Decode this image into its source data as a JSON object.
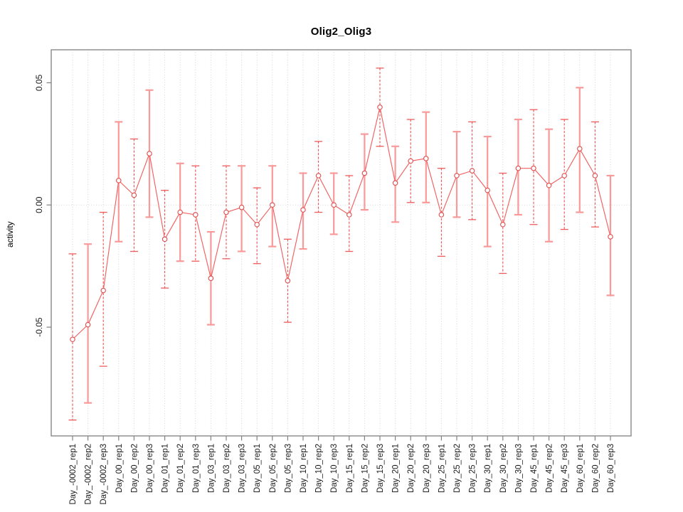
{
  "chart_data": {
    "type": "line",
    "title": "Olig2_Olig3",
    "xlabel": "",
    "ylabel": "activity",
    "legend": "none",
    "grid": "dotted vertical line at every category; dotted horizontal line at y=0",
    "ylim": [
      -0.0945,
      0.0635
    ],
    "yticks": [
      0.05,
      0.0,
      -0.05
    ],
    "ytick_labels": [
      "0.05",
      "0.00",
      "-0.05"
    ],
    "categories": [
      "Day_-0002_rep1",
      "Day_-0002_rep2",
      "Day_-0002_rep3",
      "Day_00_rep1",
      "Day_00_rep2",
      "Day_00_rep3",
      "Day_01_rep1",
      "Day_01_rep2",
      "Day_01_rep3",
      "Day_03_rep1",
      "Day_03_rep2",
      "Day_03_rep3",
      "Day_05_rep1",
      "Day_05_rep2",
      "Day_05_rep3",
      "Day_10_rep1",
      "Day_10_rep2",
      "Day_10_rep3",
      "Day_15_rep1",
      "Day_15_rep2",
      "Day_15_rep3",
      "Day_20_rep1",
      "Day_20_rep2",
      "Day_20_rep3",
      "Day_25_rep1",
      "Day_25_rep2",
      "Day_25_rep3",
      "Day_30_rep1",
      "Day_30_rep2",
      "Day_30_rep3",
      "Day_45_rep1",
      "Day_45_rep2",
      "Day_45_rep3",
      "Day_60_rep1",
      "Day_60_rep2",
      "Day_60_rep3"
    ],
    "series": [
      {
        "name": "activity",
        "marker": "open-circle",
        "values": [
          -0.055,
          -0.049,
          -0.035,
          0.01,
          0.004,
          0.021,
          -0.014,
          -0.003,
          -0.004,
          -0.03,
          -0.003,
          -0.001,
          -0.008,
          0.0,
          -0.031,
          -0.002,
          0.012,
          0.0,
          -0.004,
          0.013,
          0.04,
          0.009,
          0.018,
          0.019,
          -0.004,
          0.012,
          0.014,
          0.006,
          -0.008,
          0.015,
          0.015,
          0.008,
          0.012,
          0.023,
          0.012,
          -0.013
        ],
        "lower": [
          -0.088,
          -0.081,
          -0.066,
          -0.015,
          -0.019,
          -0.005,
          -0.034,
          -0.023,
          -0.023,
          -0.049,
          -0.022,
          -0.019,
          -0.024,
          -0.017,
          -0.048,
          -0.018,
          -0.003,
          -0.012,
          -0.019,
          -0.002,
          0.024,
          -0.007,
          0.001,
          0.001,
          -0.021,
          -0.005,
          -0.006,
          -0.017,
          -0.028,
          -0.004,
          -0.008,
          -0.015,
          -0.01,
          -0.003,
          -0.009,
          -0.037
        ],
        "upper": [
          -0.02,
          -0.016,
          -0.003,
          0.034,
          0.027,
          0.047,
          0.006,
          0.017,
          0.016,
          -0.011,
          0.016,
          0.016,
          0.007,
          0.016,
          -0.014,
          0.013,
          0.026,
          0.013,
          0.012,
          0.029,
          0.056,
          0.024,
          0.035,
          0.038,
          0.015,
          0.03,
          0.034,
          0.028,
          0.013,
          0.035,
          0.039,
          0.031,
          0.035,
          0.048,
          0.034,
          0.012
        ]
      }
    ],
    "colors": {
      "series_line": "#f16060",
      "marker_stroke": "#e05252",
      "marker_fill": "#ffffff",
      "errorbar_dashed": "#ee5050",
      "errorbar_solid": "#f99a9a",
      "errorbar_cap": "#ef5b5b",
      "gridline": "#d6d6d6",
      "axis_frame": "#808080",
      "tick_label": "#1a1a1a",
      "background": "#ffffff"
    }
  }
}
